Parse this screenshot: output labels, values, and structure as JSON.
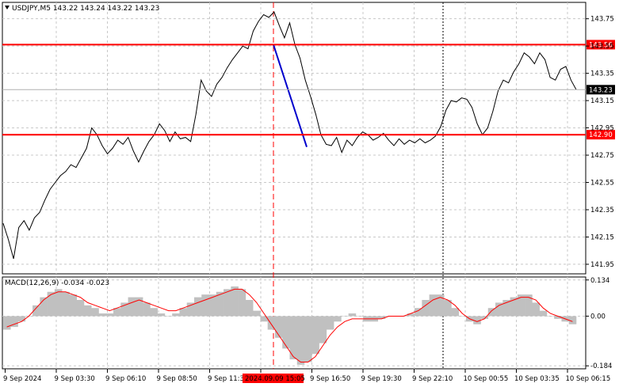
{
  "header": {
    "symbol_line": "USDJPY,M5  143.22 143.24 143.22 143.23",
    "macd_line": "MACD(12,26,9) -0.034 -0.023"
  },
  "colors": {
    "price_line": "#000000",
    "level_line": "#ff0000",
    "trend_line": "#0000cc",
    "histogram": "#c0c0c0",
    "signal": "#ff0000",
    "grid": "#c8c8c8"
  },
  "chart_data": [
    {
      "type": "line",
      "title": "USDJPY,M5",
      "ohlc_readout": {
        "open": 143.22,
        "high": 143.24,
        "low": 143.22,
        "close": 143.23
      },
      "ylim": [
        141.88,
        143.87
      ],
      "y_ticks": [
        "143.75",
        "143.55",
        "143.35",
        "143.15",
        "142.95",
        "142.75",
        "142.55",
        "142.35",
        "142.15",
        "141.95"
      ],
      "x_ticks": [
        "9 Sep 2024",
        "9 Sep 03:30",
        "9 Sep 06:10",
        "9 Sep 08:50",
        "9 Sep 11:30",
        "2024.09.09 15:05",
        "9 Sep 16:50",
        "9 Sep 19:30",
        "9 Sep 22:10",
        "10 Sep 00:55",
        "10 Sep 03:35",
        "10 Sep 06:15"
      ],
      "levels": [
        {
          "value": 143.56,
          "label": "143.56"
        },
        {
          "value": 142.9,
          "label": "142.90"
        }
      ],
      "current_price": {
        "value": 143.23,
        "label": "143.23"
      },
      "trend_segment": [
        {
          "x": "2024.09.09 15:05",
          "y": 143.56
        },
        {
          "x": "9 Sep 16:25",
          "y": 142.81
        }
      ],
      "series": [
        {
          "values": [
            142.25,
            142.13,
            141.99,
            142.22,
            142.27,
            142.2,
            142.29,
            142.33,
            142.42,
            142.5,
            142.55,
            142.6,
            142.63,
            142.68,
            142.66,
            142.73,
            142.8,
            142.95,
            142.9,
            142.82,
            142.76,
            142.8,
            142.86,
            142.83,
            142.88,
            142.78,
            142.7,
            142.78,
            142.85,
            142.9,
            142.98,
            142.93,
            142.85,
            142.92,
            142.87,
            142.88,
            142.85,
            143.05,
            143.3,
            143.22,
            143.18,
            143.27,
            143.32,
            143.39,
            143.45,
            143.5,
            143.55,
            143.53,
            143.66,
            143.73,
            143.78,
            143.76,
            143.8,
            143.7,
            143.61,
            143.72,
            143.56,
            143.46,
            143.3,
            143.18,
            143.05,
            142.9,
            142.83,
            142.82,
            142.88,
            142.77,
            142.86,
            142.82,
            142.88,
            142.92,
            142.9,
            142.86,
            142.88,
            142.91,
            142.86,
            142.82,
            142.87,
            142.83,
            142.86,
            142.84,
            142.87,
            142.84,
            142.86,
            142.89,
            142.96,
            143.08,
            143.15,
            143.14,
            143.17,
            143.16,
            143.1,
            142.98,
            142.9,
            142.95,
            143.07,
            143.22,
            143.3,
            143.28,
            143.36,
            143.42,
            143.5,
            143.47,
            143.42,
            143.5,
            143.45,
            143.32,
            143.3,
            143.38,
            143.4,
            143.3,
            143.23
          ]
        }
      ]
    },
    {
      "type": "bar",
      "title": "MACD(12,26,9)",
      "readout": {
        "macd": -0.034,
        "signal": -0.023
      },
      "ylim": [
        -0.195,
        0.145
      ],
      "y_ticks": [
        "0.134",
        "0.00",
        "-0.184"
      ],
      "series": [
        {
          "values": [
            -0.05,
            -0.04,
            -0.02,
            0.0,
            0.04,
            0.07,
            0.09,
            0.1,
            0.09,
            0.08,
            0.06,
            0.04,
            0.03,
            0.01,
            0.01,
            0.03,
            0.05,
            0.07,
            0.07,
            0.05,
            0.03,
            0.01,
            0.0,
            0.01,
            0.03,
            0.05,
            0.07,
            0.08,
            0.08,
            0.09,
            0.1,
            0.11,
            0.1,
            0.06,
            0.02,
            -0.02,
            -0.05,
            -0.08,
            -0.12,
            -0.16,
            -0.18,
            -0.17,
            -0.14,
            -0.1,
            -0.05,
            -0.02,
            0.0,
            0.01,
            0.0,
            -0.02,
            -0.02,
            -0.01,
            0.0,
            0.0,
            0.0,
            0.01,
            0.03,
            0.06,
            0.08,
            0.08,
            0.06,
            0.03,
            0.0,
            -0.02,
            -0.03,
            -0.01,
            0.03,
            0.05,
            0.06,
            0.07,
            0.08,
            0.08,
            0.05,
            0.02,
            0.0,
            -0.01,
            -0.02,
            -0.03
          ]
        },
        {
          "values": [
            -0.04,
            -0.03,
            -0.02,
            0.0,
            0.03,
            0.06,
            0.08,
            0.09,
            0.09,
            0.08,
            0.07,
            0.05,
            0.04,
            0.03,
            0.02,
            0.03,
            0.04,
            0.05,
            0.06,
            0.05,
            0.04,
            0.03,
            0.02,
            0.02,
            0.03,
            0.04,
            0.05,
            0.06,
            0.07,
            0.08,
            0.09,
            0.1,
            0.1,
            0.08,
            0.05,
            0.01,
            -0.03,
            -0.07,
            -0.11,
            -0.15,
            -0.17,
            -0.17,
            -0.15,
            -0.11,
            -0.07,
            -0.04,
            -0.02,
            -0.01,
            -0.01,
            -0.01,
            -0.01,
            -0.01,
            0.0,
            0.0,
            0.0,
            0.01,
            0.02,
            0.04,
            0.06,
            0.07,
            0.06,
            0.04,
            0.01,
            -0.01,
            -0.02,
            -0.01,
            0.02,
            0.04,
            0.05,
            0.06,
            0.07,
            0.07,
            0.06,
            0.03,
            0.01,
            0.0,
            -0.01,
            -0.02
          ]
        }
      ]
    }
  ]
}
